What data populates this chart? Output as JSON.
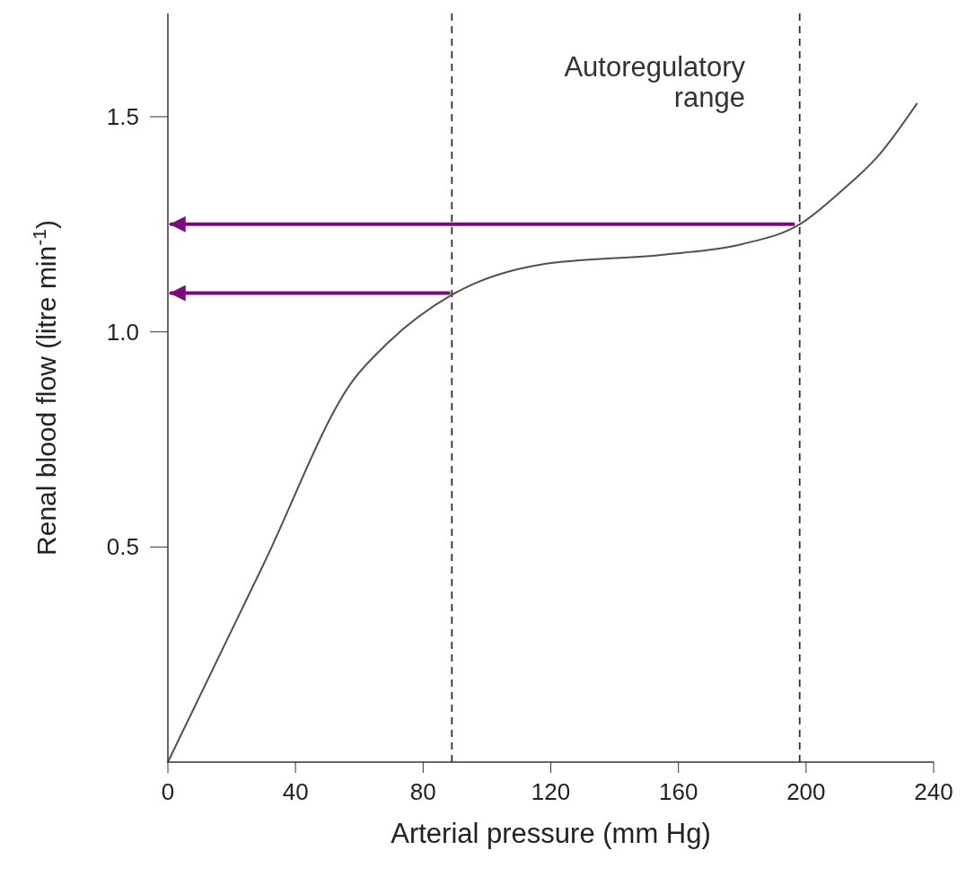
{
  "chart_data": {
    "type": "line",
    "xlabel": "Arterial pressure (mm Hg)",
    "ylabel": "Renal blood flow (litre min$^{-1}$)",
    "xlim": [
      0,
      240
    ],
    "xticks": [
      0,
      40,
      80,
      120,
      160,
      200,
      240
    ],
    "ylim": [
      0,
      1.74
    ],
    "yticks": [
      0.5,
      {
        "value": 1,
        "label": "1.0"
      },
      1.5
    ],
    "series": [
      {
        "color": "#505050",
        "x": [
          0,
          30,
          58,
          69,
          89,
          116.5,
          156,
          180,
          198,
          211,
          222.5,
          234.7
        ],
        "values": [
          0,
          0.46,
          0.887,
          0.975,
          1.086,
          1.156,
          1.18,
          1.204,
          1.25,
          1.327,
          1.408,
          1.53
        ]
      },
      {
        "color": "#7b0c7b",
        "x": [
          196,
          1
        ],
        "values": [
          1.25,
          1.25
        ]
      },
      {
        "color": "#7b0c7b",
        "x": [
          88,
          1
        ],
        "values": [
          1.09,
          1.09
        ]
      }
    ],
    "ref_lines": [
      {
        "axis": "x",
        "value": 89,
        "color": "#303030",
        "line_style": "dashed"
      },
      {
        "axis": "x",
        "value": 198,
        "color": "#303030",
        "line_style": "dashed"
      }
    ],
    "annotations": [
      "Autoregulatory range"
    ],
    "marker": "none",
    "line_style": "solid",
    "grid": false
  }
}
